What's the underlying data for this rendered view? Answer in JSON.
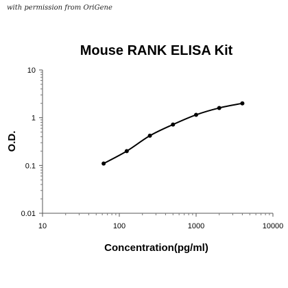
{
  "credit": "with permission from OriGene",
  "chart_data": {
    "type": "scatter",
    "title": "Mouse RANK ELISA Kit",
    "xlabel": "Concentration(pg/ml)",
    "ylabel": "O.D.",
    "xscale": "log",
    "yscale": "log",
    "xlim": [
      10,
      10000
    ],
    "ylim": [
      0.01,
      10
    ],
    "x_ticks": [
      "10",
      "100",
      "1000",
      "10000"
    ],
    "y_ticks": [
      "0.01",
      "0.1",
      "1",
      "10"
    ],
    "grid": false,
    "legend": "none",
    "trendline": true,
    "series": [
      {
        "x": [
          62.5,
          125,
          250,
          500,
          1000,
          2000,
          4000
        ],
        "y": [
          0.11,
          0.2,
          0.42,
          0.72,
          1.15,
          1.6,
          2.0
        ]
      }
    ],
    "marker_color": "#000000",
    "line_color": "#000000"
  }
}
